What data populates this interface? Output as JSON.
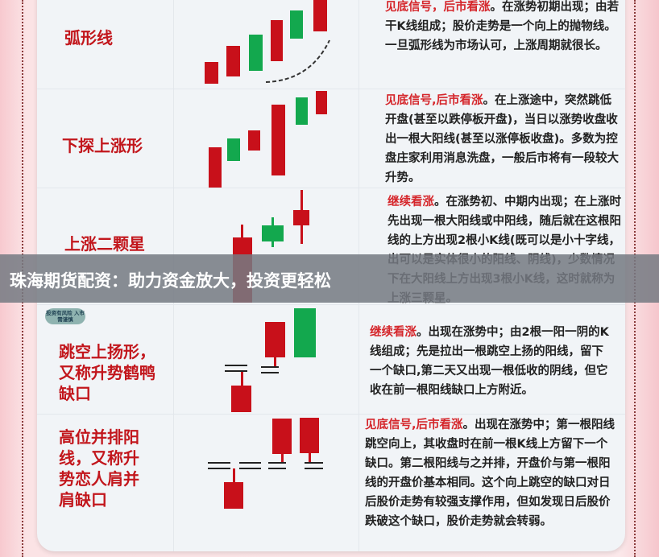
{
  "rows": [
    {
      "title": "弧形线",
      "highlight": "见底信号，后市看涨",
      "text": "。在涨势初期出现；由若干K线组成；股价走势是一个向上的抛物线。一旦弧形线为市场认可，上涨周期就很长。"
    },
    {
      "title": "下探上涨形",
      "highlight": "见底信号,后市看涨",
      "text": "。在上涨途中，突然跳低开盘(甚至以跌停板开盘)，当日以涨势收盘收出一根大阳线(甚至以涨停板收盘)。多数为控盘庄家利用消息洗盘，一般后市将有一段较大升势。"
    },
    {
      "title": "上涨二颗星",
      "highlight": "继续看涨",
      "text": "。在涨势初、中期内出现；在上涨时先出现一根大阳线或中阳线，随后就在这根阳线的上方出现2根小K线(既可以是小十字线，出可以是实体很小的阳线、阴线)，少数情况下在大阳线上方出现3根小K线，这时就称为上涨三颗星。"
    },
    {
      "title": "跳空上扬形，又称升势鹤鸭缺口",
      "highlight": "继续看涨",
      "text": "。出现在涨势中；由2根一阳一阴的K线组成；先是拉出一根跳空上扬的阳线，留下一个缺口,第二天又出现一根低收的阴线，但它收在前一根阳线缺口上方附近。"
    },
    {
      "title": "高位并排阳线，又称升势恋人肩并肩缺口",
      "highlight": "见底信号,后市看涨",
      "text": "。出现在涨势中；第一根阳线跳空向上，其收盘时在前一根K线上方留下一个缺口。第二根阳线与之并排，开盘价与第一根阳线的开盘价基本相同。这个向上跳空的缺口对日后股价走势有较强支撑作用，但如发现日后股价跌破这个缺口，股价走势就会转弱。"
    }
  ],
  "badge": "投资有风险 入市需谨慎",
  "banner": "珠海期货配资：助力资金放大，投资更轻松",
  "colors": {
    "bullish": "#c8101a",
    "bearish": "#13a84e",
    "title": "#c2161c",
    "highlight": "#d5262b"
  }
}
